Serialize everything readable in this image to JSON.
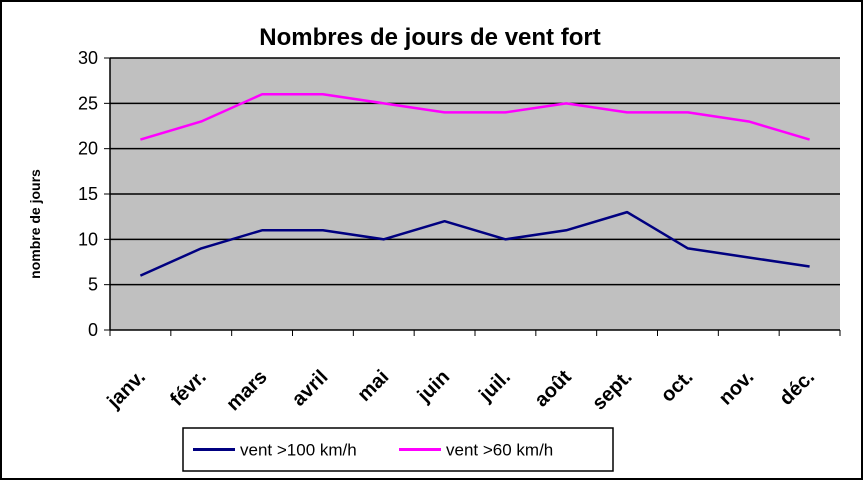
{
  "chart_data": {
    "type": "line",
    "title": "Nombres de jours de vent fort",
    "xlabel": "",
    "ylabel": "nombre de jours",
    "categories": [
      "janv.",
      "févr.",
      "mars",
      "avril",
      "mai",
      "juin",
      "juil.",
      "août",
      "sept.",
      "oct.",
      "nov.",
      "déc."
    ],
    "yticks": [
      "0",
      "5",
      "10",
      "15",
      "20",
      "25",
      "30"
    ],
    "ylim": [
      0,
      30
    ],
    "grid": true,
    "plot_background": "#c0c0c0",
    "legend_position": "bottom",
    "series": [
      {
        "name": "vent >100 km/h",
        "color": "#000080",
        "values": [
          6,
          9,
          11,
          11,
          10,
          12,
          10,
          11,
          13,
          9,
          8,
          7
        ]
      },
      {
        "name": "vent >60 km/h",
        "color": "#ff00ff",
        "values": [
          21,
          23,
          26,
          26,
          25,
          24,
          24,
          25,
          24,
          24,
          23,
          21
        ]
      }
    ]
  }
}
